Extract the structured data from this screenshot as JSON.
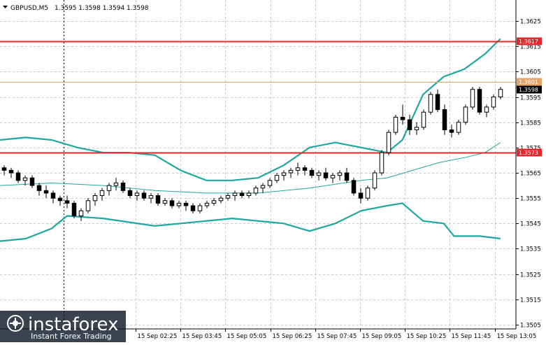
{
  "header": {
    "symbol": "GBPUSD,M5",
    "ohlc": "1.3595 1.3598 1.3594 1.3598"
  },
  "colors": {
    "background": "#ffffff",
    "grid": "#c8c8c8",
    "level_line": "#e8252a",
    "current_line": "#e2a56b",
    "bollinger": "#1fa8a0",
    "candle": "#000000"
  },
  "price_axis": {
    "ticks": [
      "1.3625",
      "1.3615",
      "1.3605",
      "1.3595",
      "1.3585",
      "1.3575",
      "1.3565",
      "1.3555",
      "1.3545",
      "1.3535",
      "1.3525",
      "1.3515",
      "1.3505"
    ]
  },
  "time_axis": {
    "ticks": [
      "15 Sep 02:25",
      "15 Sep 03:45",
      "15 Sep 05:05",
      "15 Sep 06:25",
      "15 Sep 07:45",
      "15 Sep 09:05",
      "15 Sep 10:25",
      "15 Sep 11:45",
      "15 Sep 13:05"
    ]
  },
  "level_tags": {
    "upper": "1.3617",
    "current_orange": "1.3601",
    "current_price": "1.3598",
    "lower": "1.3573"
  },
  "watermark": {
    "brand": "instaforex",
    "tagline": "Instant Forex Trading"
  },
  "chart_data": {
    "type": "candlestick",
    "symbol": "GBPUSD",
    "timeframe": "M5",
    "ylim": [
      1.35,
      1.363
    ],
    "y_ticks": [
      1.3625,
      1.3615,
      1.3605,
      1.3595,
      1.3585,
      1.3575,
      1.3565,
      1.3555,
      1.3545,
      1.3535,
      1.3525,
      1.3515,
      1.3505
    ],
    "horizontal_levels": [
      {
        "price": 1.3617,
        "color": "#e8252a"
      },
      {
        "price": 1.3601,
        "color": "#e2a56b"
      },
      {
        "price": 1.3573,
        "color": "#e8252a"
      }
    ],
    "candles": [
      [
        1.3567,
        1.3568,
        1.3564,
        1.3566
      ],
      [
        1.3566,
        1.3567,
        1.3563,
        1.3565
      ],
      [
        1.3565,
        1.3566,
        1.3561,
        1.3562
      ],
      [
        1.3562,
        1.3564,
        1.356,
        1.3563
      ],
      [
        1.3563,
        1.3564,
        1.3559,
        1.356
      ],
      [
        1.356,
        1.3561,
        1.3556,
        1.3558
      ],
      [
        1.3558,
        1.356,
        1.3555,
        1.3557
      ],
      [
        1.3557,
        1.3558,
        1.3553,
        1.3555
      ],
      [
        1.3555,
        1.3556,
        1.3552,
        1.3554
      ],
      [
        1.3554,
        1.3556,
        1.3551,
        1.3553
      ],
      [
        1.3553,
        1.3554,
        1.3547,
        1.3548
      ],
      [
        1.3548,
        1.3551,
        1.3546,
        1.355
      ],
      [
        1.355,
        1.3555,
        1.3549,
        1.3554
      ],
      [
        1.3554,
        1.3557,
        1.3552,
        1.3556
      ],
      [
        1.3556,
        1.3559,
        1.3554,
        1.3558
      ],
      [
        1.3558,
        1.3561,
        1.3556,
        1.356
      ],
      [
        1.356,
        1.3563,
        1.3558,
        1.3561
      ],
      [
        1.3561,
        1.3562,
        1.3557,
        1.3558
      ],
      [
        1.3558,
        1.3559,
        1.3555,
        1.3556
      ],
      [
        1.3556,
        1.3558,
        1.3554,
        1.3557
      ],
      [
        1.3557,
        1.3558,
        1.3554,
        1.3555
      ],
      [
        1.3555,
        1.3557,
        1.3553,
        1.3556
      ],
      [
        1.3556,
        1.3557,
        1.3552,
        1.3553
      ],
      [
        1.3553,
        1.3555,
        1.3552,
        1.3554
      ],
      [
        1.3554,
        1.3555,
        1.3551,
        1.3552
      ],
      [
        1.3552,
        1.3554,
        1.3551,
        1.3553
      ],
      [
        1.3553,
        1.3554,
        1.355,
        1.3552
      ],
      [
        1.3552,
        1.3553,
        1.3549,
        1.355
      ],
      [
        1.355,
        1.3553,
        1.3549,
        1.3552
      ],
      [
        1.3552,
        1.3554,
        1.3551,
        1.3553
      ],
      [
        1.3553,
        1.3555,
        1.3552,
        1.3554
      ],
      [
        1.3554,
        1.3556,
        1.3553,
        1.3555
      ],
      [
        1.3555,
        1.3557,
        1.3554,
        1.3556
      ],
      [
        1.3556,
        1.3558,
        1.3554,
        1.3557
      ],
      [
        1.3557,
        1.3558,
        1.3555,
        1.3556
      ],
      [
        1.3556,
        1.3558,
        1.3555,
        1.3557
      ],
      [
        1.3557,
        1.356,
        1.3556,
        1.3559
      ],
      [
        1.3559,
        1.3561,
        1.3557,
        1.356
      ],
      [
        1.356,
        1.3563,
        1.3559,
        1.3562
      ],
      [
        1.3562,
        1.3565,
        1.3561,
        1.3564
      ],
      [
        1.3564,
        1.3566,
        1.3562,
        1.3565
      ],
      [
        1.3565,
        1.3567,
        1.3563,
        1.3566
      ],
      [
        1.3566,
        1.3569,
        1.3564,
        1.3567
      ],
      [
        1.3567,
        1.3568,
        1.3564,
        1.3566
      ],
      [
        1.3566,
        1.3567,
        1.3563,
        1.3564
      ],
      [
        1.3564,
        1.3566,
        1.3562,
        1.3565
      ],
      [
        1.3565,
        1.3567,
        1.3562,
        1.3563
      ],
      [
        1.3563,
        1.3565,
        1.3561,
        1.3564
      ],
      [
        1.3564,
        1.3566,
        1.3562,
        1.3565
      ],
      [
        1.3565,
        1.3567,
        1.3561,
        1.3562
      ],
      [
        1.3562,
        1.3563,
        1.3556,
        1.3557
      ],
      [
        1.3557,
        1.3559,
        1.3553,
        1.3555
      ],
      [
        1.3555,
        1.356,
        1.3554,
        1.3559
      ],
      [
        1.3559,
        1.3566,
        1.3558,
        1.3565
      ],
      [
        1.3565,
        1.3574,
        1.3564,
        1.3573
      ],
      [
        1.3573,
        1.3582,
        1.3572,
        1.3581
      ],
      [
        1.3581,
        1.3588,
        1.358,
        1.3587
      ],
      [
        1.3587,
        1.3592,
        1.3584,
        1.3586
      ],
      [
        1.3586,
        1.3588,
        1.358,
        1.3582
      ],
      [
        1.3582,
        1.3585,
        1.358,
        1.3583
      ],
      [
        1.3583,
        1.359,
        1.3582,
        1.3589
      ],
      [
        1.3589,
        1.3597,
        1.3588,
        1.3596
      ],
      [
        1.3596,
        1.3598,
        1.3589,
        1.359
      ],
      [
        1.359,
        1.3592,
        1.358,
        1.3582
      ],
      [
        1.3582,
        1.3584,
        1.3579,
        1.3581
      ],
      [
        1.3581,
        1.3586,
        1.358,
        1.3585
      ],
      [
        1.3585,
        1.3592,
        1.3584,
        1.3591
      ],
      [
        1.3591,
        1.3599,
        1.359,
        1.3598
      ],
      [
        1.3598,
        1.3599,
        1.3588,
        1.3589
      ],
      [
        1.3589,
        1.3592,
        1.3587,
        1.3591
      ],
      [
        1.3591,
        1.3596,
        1.359,
        1.3595
      ],
      [
        1.3595,
        1.3599,
        1.3594,
        1.3598
      ]
    ],
    "bollinger_upper": [
      [
        0,
        1.3578
      ],
      [
        0.05,
        1.3579
      ],
      [
        0.1,
        1.3578
      ],
      [
        0.15,
        1.3575
      ],
      [
        0.2,
        1.3573
      ],
      [
        0.25,
        1.3573
      ],
      [
        0.3,
        1.3572
      ],
      [
        0.35,
        1.3566
      ],
      [
        0.4,
        1.3562
      ],
      [
        0.45,
        1.3562
      ],
      [
        0.5,
        1.3563
      ],
      [
        0.55,
        1.3568
      ],
      [
        0.6,
        1.3575
      ],
      [
        0.65,
        1.3577
      ],
      [
        0.7,
        1.3575
      ],
      [
        0.75,
        1.3573
      ],
      [
        0.78,
        1.3578
      ],
      [
        0.82,
        1.3596
      ],
      [
        0.86,
        1.3603
      ],
      [
        0.9,
        1.3606
      ],
      [
        0.94,
        1.3612
      ],
      [
        0.97,
        1.3618
      ]
    ],
    "bollinger_middle": [
      [
        0,
        1.356
      ],
      [
        0.1,
        1.3561
      ],
      [
        0.2,
        1.356
      ],
      [
        0.3,
        1.3558
      ],
      [
        0.4,
        1.3557
      ],
      [
        0.5,
        1.3557
      ],
      [
        0.6,
        1.3559
      ],
      [
        0.7,
        1.3562
      ],
      [
        0.75,
        1.3563
      ],
      [
        0.8,
        1.3566
      ],
      [
        0.85,
        1.3569
      ],
      [
        0.9,
        1.3571
      ],
      [
        0.94,
        1.3573
      ],
      [
        0.97,
        1.3577
      ]
    ],
    "bollinger_lower": [
      [
        0,
        1.3538
      ],
      [
        0.05,
        1.3539
      ],
      [
        0.1,
        1.3543
      ],
      [
        0.13,
        1.3548
      ],
      [
        0.2,
        1.3547
      ],
      [
        0.3,
        1.3544
      ],
      [
        0.35,
        1.3545
      ],
      [
        0.45,
        1.3547
      ],
      [
        0.55,
        1.3545
      ],
      [
        0.6,
        1.3542
      ],
      [
        0.65,
        1.3545
      ],
      [
        0.7,
        1.355
      ],
      [
        0.75,
        1.3552
      ],
      [
        0.78,
        1.3553
      ],
      [
        0.82,
        1.3546
      ],
      [
        0.86,
        1.3545
      ],
      [
        0.88,
        1.354
      ],
      [
        0.93,
        1.354
      ],
      [
        0.97,
        1.3539
      ]
    ]
  }
}
